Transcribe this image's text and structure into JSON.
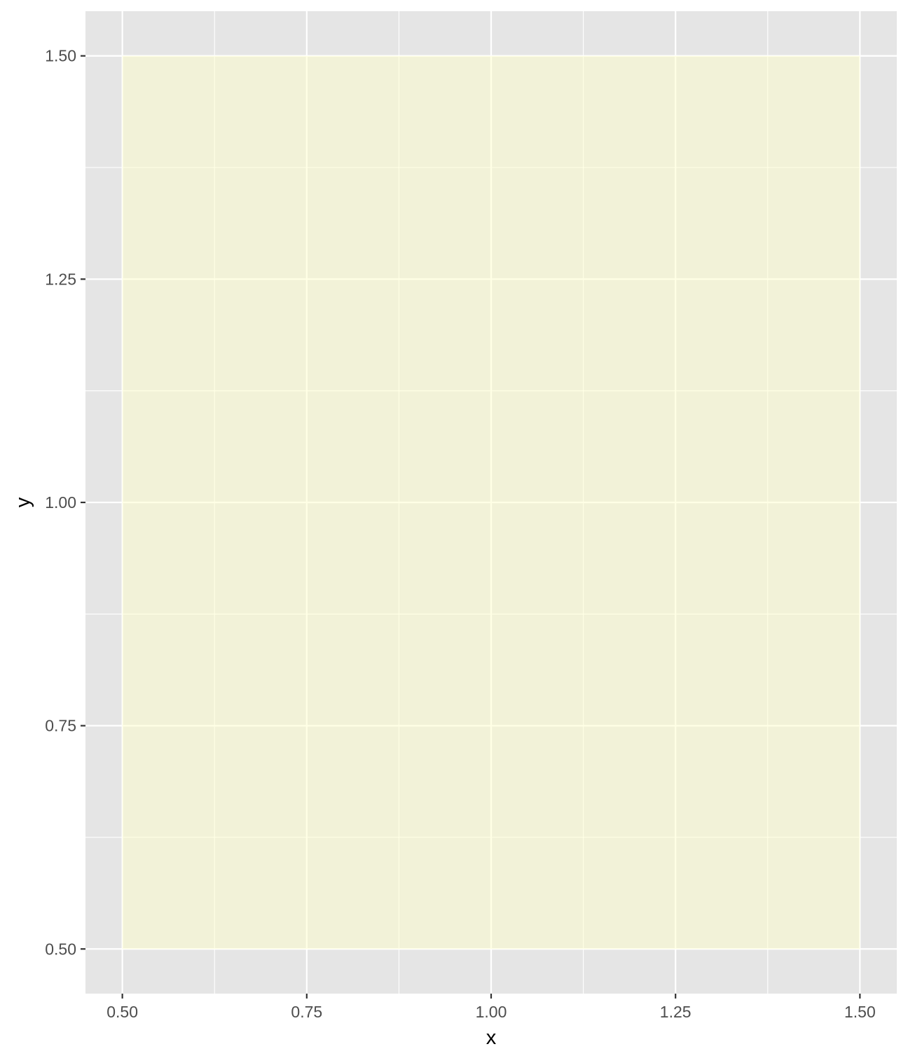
{
  "chart_data": {
    "type": "rect",
    "title": "",
    "xlabel": "x",
    "ylabel": "y",
    "xlim": [
      0.45,
      1.55
    ],
    "ylim": [
      0.45,
      1.55
    ],
    "x_ticks": [
      0.5,
      0.75,
      1.0,
      1.25,
      1.5
    ],
    "x_tick_labels": [
      "0.50",
      "0.75",
      "1.00",
      "1.25",
      "1.50"
    ],
    "y_ticks": [
      0.5,
      0.75,
      1.0,
      1.25,
      1.5
    ],
    "y_tick_labels": [
      "0.50",
      "0.75",
      "1.00",
      "1.25",
      "1.50"
    ],
    "x_minor_breaks": [
      0.625,
      0.875,
      1.125,
      1.375
    ],
    "y_minor_breaks": [
      0.625,
      0.875,
      1.125,
      1.375
    ],
    "rects": [
      {
        "xmin": 0.5,
        "xmax": 1.5,
        "ymin": 0.5,
        "ymax": 1.5,
        "fill": "#ffffcc",
        "alpha": 0.5
      }
    ],
    "grid": true,
    "legend": "none",
    "colors": {
      "panel_background": "#e5e5e5",
      "grid_line": "#ffffff",
      "tick_label": "#4d4d4d",
      "axis_title": "#000000"
    }
  }
}
